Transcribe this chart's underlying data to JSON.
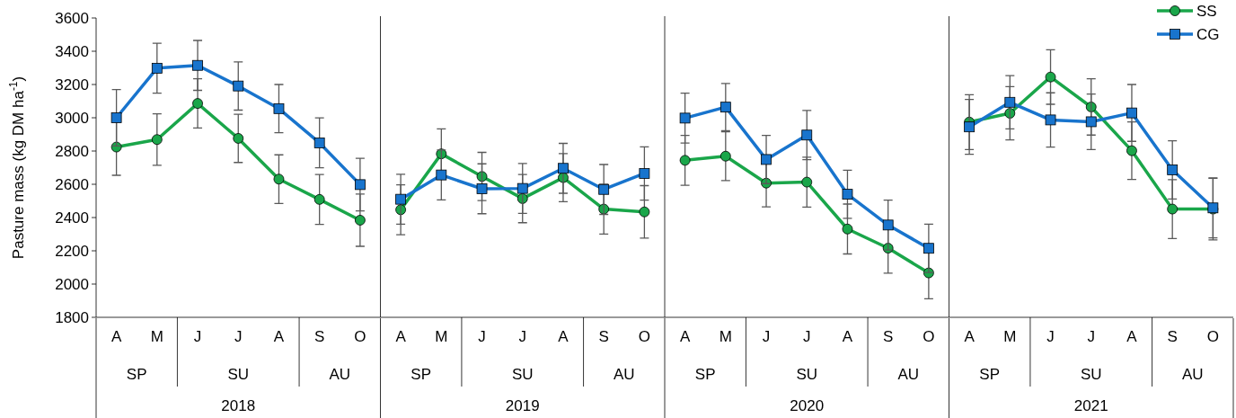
{
  "chart_data": [
    {
      "type": "line",
      "ylabel": "Pasture mass (kg DM ha$^{-1}$)",
      "xlabel": "2018",
      "categories": [
        "A",
        "M",
        "J",
        "J",
        "A",
        "S",
        "O"
      ],
      "annotations": [
        "SP",
        "SU",
        "AU"
      ],
      "ylim": [
        1800,
        3600
      ],
      "yticks": [
        1800,
        2000,
        2200,
        2400,
        2600,
        2800,
        3000,
        3200,
        3400,
        3600
      ],
      "legend": false,
      "series": [
        {
          "color": "#1aa64a",
          "marker": "circle",
          "values": [
            2824,
            2869,
            3086,
            2876,
            2631,
            2509,
            2384
          ],
          "errors": [
            170,
            155,
            148,
            145,
            146,
            150,
            157
          ]
        },
        {
          "color": "#1874cd",
          "marker": "square",
          "values": [
            3000,
            3298,
            3315,
            3191,
            3055,
            2849,
            2598
          ],
          "errors": [
            170,
            150,
            150,
            145,
            145,
            150,
            158
          ]
        }
      ]
    },
    {
      "type": "line",
      "xlabel": "2019",
      "categories": [
        "A",
        "M",
        "J",
        "J",
        "A",
        "S",
        "O"
      ],
      "annotations": [
        "SP",
        "SU",
        "AU"
      ],
      "ylim": [
        1800,
        3600
      ],
      "tick_labels": "x",
      "legend": false,
      "series": [
        {
          "color": "#1aa64a",
          "marker": "circle",
          "values": [
            2447,
            2783,
            2647,
            2514,
            2640,
            2451,
            2434
          ],
          "errors": [
            150,
            150,
            145,
            145,
            145,
            150,
            158
          ]
        },
        {
          "color": "#1874cd",
          "marker": "square",
          "values": [
            2510,
            2656,
            2573,
            2575,
            2696,
            2569,
            2665
          ],
          "errors": [
            150,
            150,
            150,
            150,
            150,
            150,
            160
          ]
        }
      ]
    },
    {
      "type": "line",
      "xlabel": "2020",
      "categories": [
        "A",
        "M",
        "J",
        "J",
        "A",
        "S",
        "O"
      ],
      "annotations": [
        "SP",
        "SU",
        "AU"
      ],
      "ylim": [
        1800,
        3600
      ],
      "tick_labels": "x",
      "legend": false,
      "series": [
        {
          "color": "#1aa64a",
          "marker": "circle",
          "values": [
            2744,
            2769,
            2607,
            2613,
            2331,
            2216,
            2067
          ],
          "errors": [
            150,
            147,
            143,
            150,
            150,
            150,
            156
          ]
        },
        {
          "color": "#1874cd",
          "marker": "square",
          "values": [
            2998,
            3064,
            2749,
            2896,
            2540,
            2355,
            2215
          ],
          "errors": [
            150,
            142,
            145,
            148,
            145,
            150,
            145
          ]
        }
      ]
    },
    {
      "type": "line",
      "xlabel": "2021",
      "categories": [
        "A",
        "M",
        "J",
        "J",
        "A",
        "S",
        "O"
      ],
      "annotations": [
        "SP",
        "SU",
        "AU"
      ],
      "ylim": [
        1800,
        3600
      ],
      "tick_labels": "x",
      "legend": "top right",
      "series": [
        {
          "name": "SS",
          "color": "#1aa64a",
          "marker": "circle",
          "values": [
            2974,
            3027,
            3245,
            3065,
            2802,
            2451,
            2451
          ],
          "errors": [
            165,
            160,
            164,
            169,
            173,
            177,
            185
          ]
        },
        {
          "name": "CG",
          "color": "#1874cd",
          "marker": "square",
          "values": [
            2945,
            3093,
            2987,
            2976,
            3029,
            2687,
            2458
          ],
          "errors": [
            165,
            160,
            163,
            167,
            171,
            175,
            180
          ]
        }
      ]
    }
  ]
}
